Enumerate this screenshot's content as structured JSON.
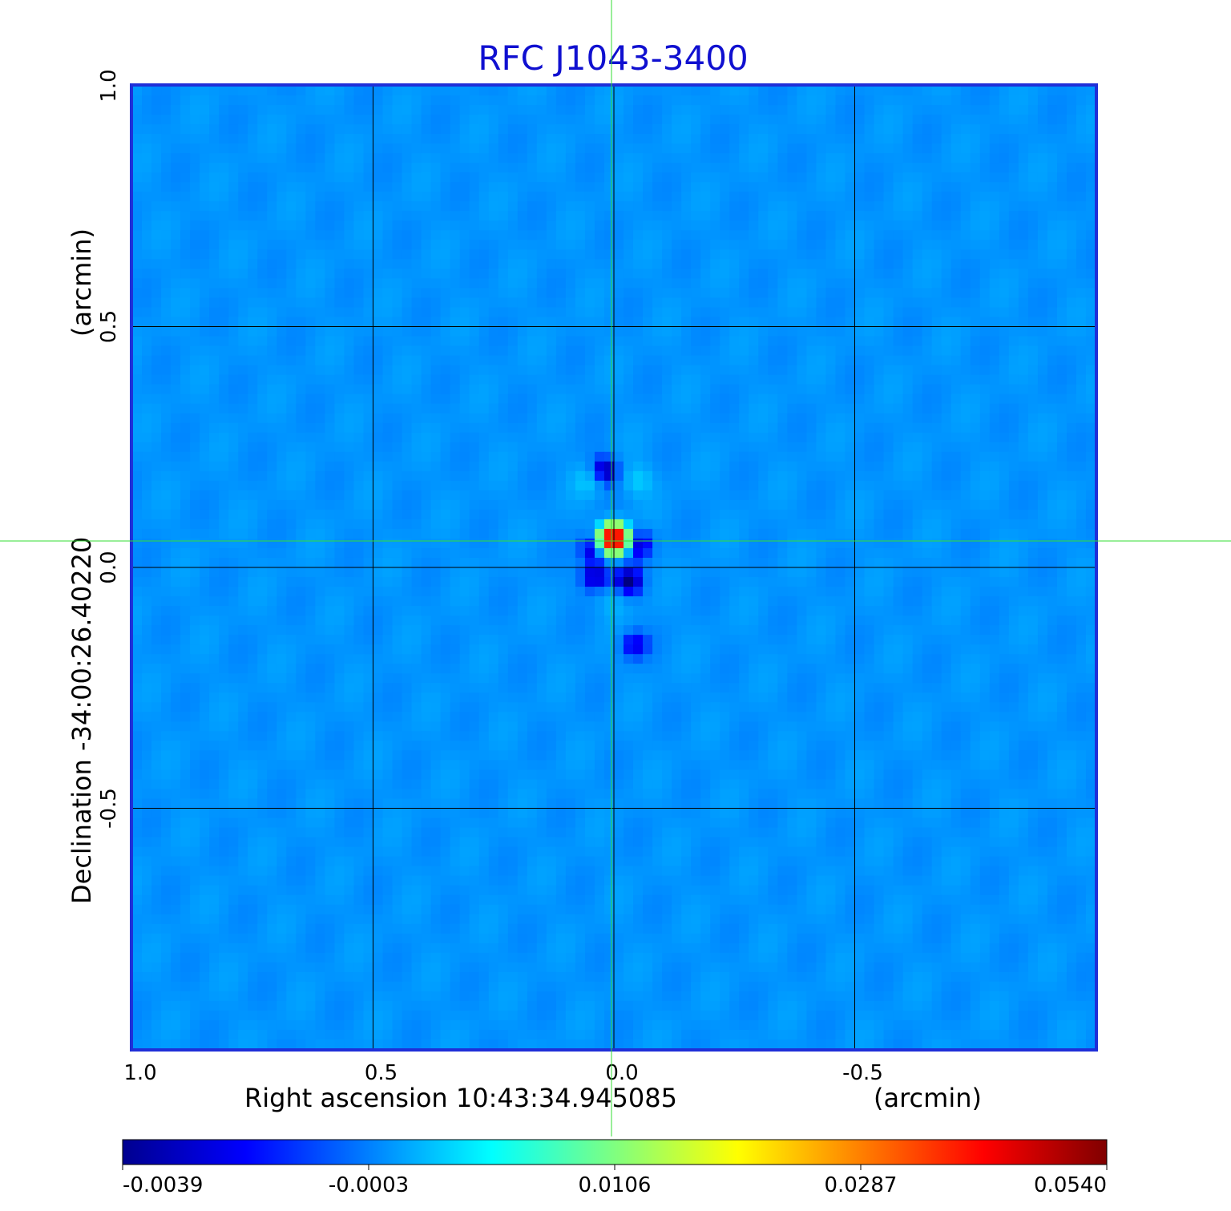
{
  "chart_data": {
    "type": "heatmap",
    "title": "RFC J1043-3400",
    "xlabel": "Right ascension  10:43:34.945085",
    "xlabel_units": "(arcmin)",
    "ylabel": "Declination  -34:00:26.40220",
    "ylabel_units": "(arcmin)",
    "xlim": [
      1.0,
      -1.0
    ],
    "ylim": [
      -1.0,
      1.0
    ],
    "x_ticks": [
      "1.0",
      "0.5",
      "0.0",
      "-0.5"
    ],
    "x_tick_values": [
      1.0,
      0.5,
      0.0,
      -0.5
    ],
    "y_ticks": [
      "1.0",
      "0.5",
      "0.0",
      "-0.5"
    ],
    "y_tick_values": [
      1.0,
      0.5,
      0.0,
      -0.5
    ],
    "grid": true,
    "crosshair": {
      "x": 0.0,
      "y": 0.06,
      "color": "#33dd33"
    },
    "colorbar": {
      "ticks": [
        "-0.0039",
        "-0.0003",
        "0.0106",
        "0.0287",
        "0.0540"
      ],
      "min": -0.0039,
      "max": 0.054,
      "colormap": "jet"
    },
    "background_level": 0.0006,
    "peak": {
      "x": 0.0,
      "y": 0.06,
      "value": 0.054
    },
    "features": [
      {
        "x": 0.0,
        "y": 0.06,
        "value": 0.054
      },
      {
        "x": 0.02,
        "y": 0.2,
        "value": -0.0039
      },
      {
        "x": 0.05,
        "y": 0.18,
        "value": 0.003
      },
      {
        "x": -0.05,
        "y": 0.18,
        "value": 0.003
      },
      {
        "x": 0.04,
        "y": 0.04,
        "value": -0.0036
      },
      {
        "x": -0.05,
        "y": 0.05,
        "value": -0.0034
      },
      {
        "x": 0.04,
        "y": -0.02,
        "value": -0.0034
      },
      {
        "x": -0.03,
        "y": -0.03,
        "value": -0.0035
      },
      {
        "x": 0.0,
        "y": -0.07,
        "value": 0.002
      },
      {
        "x": -0.04,
        "y": -0.16,
        "value": -0.0025
      }
    ]
  }
}
